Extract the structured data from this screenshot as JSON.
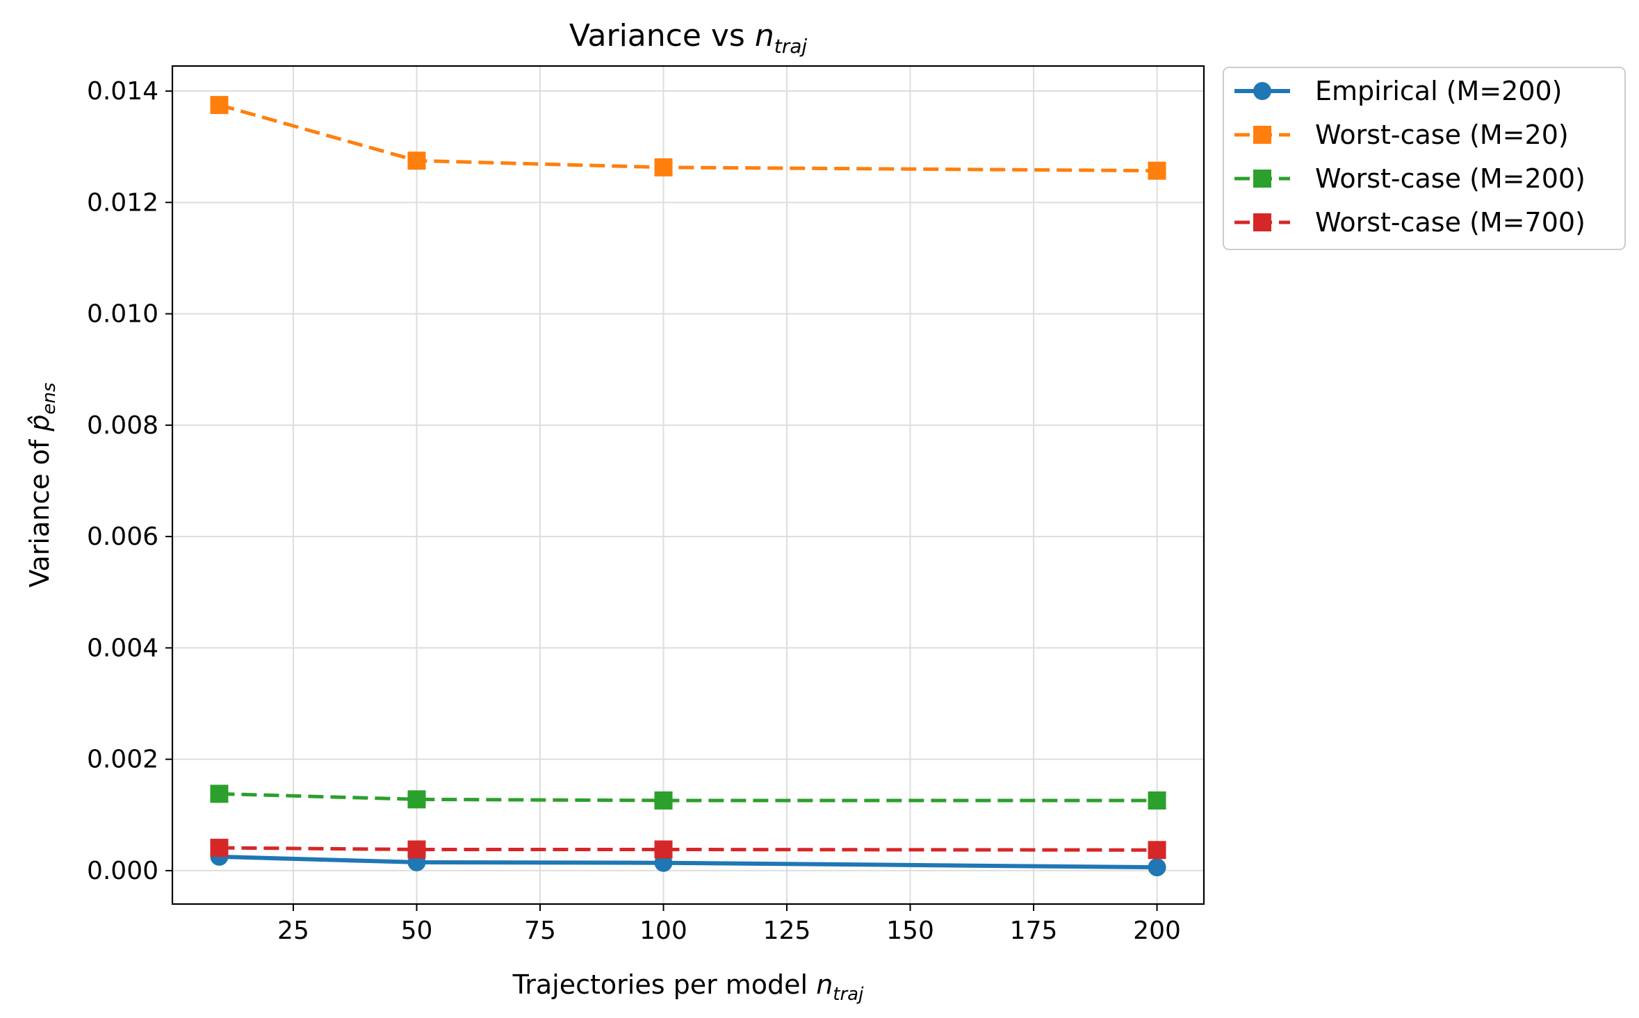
{
  "chart_data": {
    "type": "line",
    "title": {
      "main": "Variance vs ",
      "var": "n",
      "sub": "traj"
    },
    "xlabel": {
      "main": "Trajectories per model ",
      "var": "n",
      "sub": "traj"
    },
    "ylabel": {
      "main": "Variance of ",
      "var": "p̂",
      "sub": "ens"
    },
    "x": [
      10,
      50,
      100,
      200
    ],
    "xlim": [
      0.5,
      209.5
    ],
    "ylim": [
      -0.0006,
      0.01445
    ],
    "xticks": [
      25,
      50,
      75,
      100,
      125,
      150,
      175,
      200
    ],
    "yticks": [
      0.0,
      0.002,
      0.004,
      0.006,
      0.008,
      0.01,
      0.012,
      0.014
    ],
    "ytick_labels": [
      "0.000",
      "0.002",
      "0.004",
      "0.006",
      "0.008",
      "0.010",
      "0.012",
      "0.014"
    ],
    "grid": true,
    "legend_position": "outside-upper-right",
    "series": [
      {
        "name": "Empirical (M=200)",
        "values": [
          0.00025,
          0.00015,
          0.00014,
          6e-05
        ],
        "color": "#1f77b4",
        "linestyle": "solid",
        "marker": "circle"
      },
      {
        "name": "Worst-case (M=20)",
        "values": [
          0.01375,
          0.01275,
          0.01263,
          0.01257
        ],
        "color": "#ff7f0e",
        "linestyle": "dashed",
        "marker": "square"
      },
      {
        "name": "Worst-case (M=200)",
        "values": [
          0.00138,
          0.00128,
          0.00126,
          0.00126
        ],
        "color": "#2ca02c",
        "linestyle": "dashed",
        "marker": "square"
      },
      {
        "name": "Worst-case (M=700)",
        "values": [
          0.00041,
          0.00038,
          0.00038,
          0.00037
        ],
        "color": "#d62728",
        "linestyle": "dashed",
        "marker": "square"
      }
    ]
  }
}
